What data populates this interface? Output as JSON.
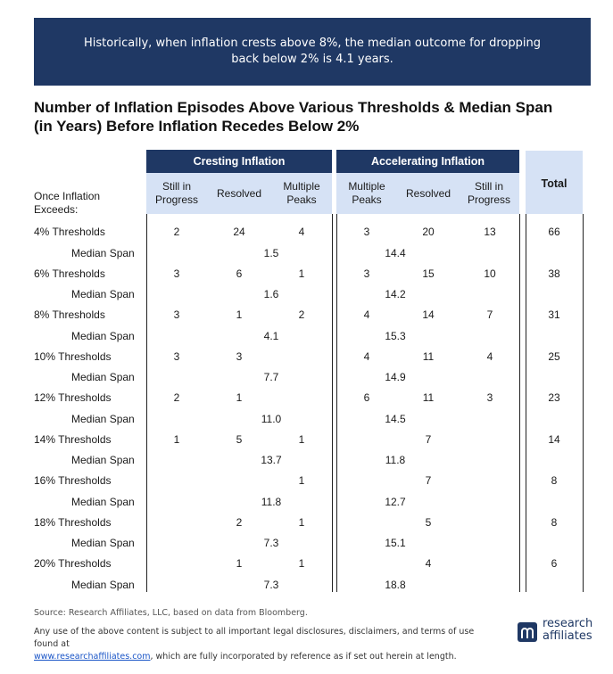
{
  "banner": {
    "line1": "Historically, when inflation crests above 8%, the median outcome for dropping",
    "line2": "back below 2% is 4.1 years."
  },
  "title": {
    "line1": "Number of Inflation Episodes Above Various Thresholds & Median Span",
    "line2": "(in Years) Before Inflation Recedes Below 2%"
  },
  "chart_data": {
    "type": "table",
    "row_header": "Once Inflation Exceeds:",
    "groups": [
      {
        "name": "Cresting Inflation",
        "columns": [
          "Still in Progress",
          "Resolved",
          "Multiple Peaks"
        ]
      },
      {
        "name": "Accelerating Inflation",
        "columns": [
          "Multiple Peaks",
          "Resolved",
          "Still in Progress"
        ]
      }
    ],
    "total_header": "Total",
    "span_label": "Median Span",
    "rows": [
      {
        "label": "4% Thresholds",
        "cresting": [
          "2",
          "24",
          "4"
        ],
        "accelerating": [
          "3",
          "20",
          "13"
        ],
        "total": "66",
        "cresting_span": "1.5",
        "accelerating_span": "14.4"
      },
      {
        "label": "6% Thresholds",
        "cresting": [
          "3",
          "6",
          "1"
        ],
        "accelerating": [
          "3",
          "15",
          "10"
        ],
        "total": "38",
        "cresting_span": "1.6",
        "accelerating_span": "14.2"
      },
      {
        "label": "8% Thresholds",
        "cresting": [
          "3",
          "1",
          "2"
        ],
        "accelerating": [
          "4",
          "14",
          "7"
        ],
        "total": "31",
        "cresting_span": "4.1",
        "accelerating_span": "15.3"
      },
      {
        "label": "10% Thresholds",
        "cresting": [
          "3",
          "3",
          ""
        ],
        "accelerating": [
          "4",
          "11",
          "4"
        ],
        "total": "25",
        "cresting_span": "7.7",
        "accelerating_span": "14.9"
      },
      {
        "label": "12% Thresholds",
        "cresting": [
          "2",
          "1",
          ""
        ],
        "accelerating": [
          "6",
          "11",
          "3"
        ],
        "total": "23",
        "cresting_span": "11.0",
        "accelerating_span": "14.5"
      },
      {
        "label": "14% Thresholds",
        "cresting": [
          "1",
          "5",
          "1"
        ],
        "accelerating": [
          "",
          "7",
          ""
        ],
        "total": "14",
        "cresting_span": "13.7",
        "accelerating_span": "11.8"
      },
      {
        "label": "16% Thresholds",
        "cresting": [
          "",
          "",
          "1"
        ],
        "accelerating": [
          "",
          "7",
          ""
        ],
        "total": "8",
        "cresting_span": "11.8",
        "accelerating_span": "12.7"
      },
      {
        "label": "18% Thresholds",
        "cresting": [
          "",
          "2",
          "1"
        ],
        "accelerating": [
          "",
          "5",
          ""
        ],
        "total": "8",
        "cresting_span": "7.3",
        "accelerating_span": "15.1"
      },
      {
        "label": "20% Thresholds",
        "cresting": [
          "",
          "1",
          "1"
        ],
        "accelerating": [
          "",
          "4",
          ""
        ],
        "total": "6",
        "cresting_span": "7.3",
        "accelerating_span": "18.8"
      }
    ]
  },
  "footer": {
    "source": "Source: Research Affiliates, LLC, based on data from Bloomberg.",
    "disclaimer_line1": "Any use of the above content is subject to all important legal disclosures, disclaimers, and terms of use found at",
    "link_text": "www.researchaffiliates.com",
    "disclaimer_line2": ", which are fully incorporated by reference as if set out herein at length."
  },
  "logo": {
    "line1": "research",
    "line2": "affiliates"
  },
  "colors": {
    "navy": "#1f3864",
    "light_blue": "#d6e2f5"
  }
}
